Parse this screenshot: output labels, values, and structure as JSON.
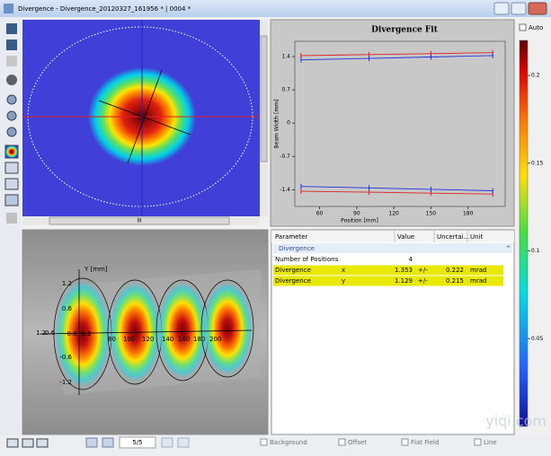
{
  "window": {
    "title": "Divergence - Divergence_20120327_161956 * | 0004 *"
  },
  "image_panel": {
    "scrollbar_thumb": "III"
  },
  "chart_data": {
    "type": "line",
    "title": "Divergence Fit",
    "x_label": "Position [mm]",
    "y_label": "Beam Width [mm]",
    "x": [
      45,
      100,
      150,
      200
    ],
    "series": [
      {
        "color": "#e02020",
        "values": [
          1.42,
          1.44,
          1.46,
          1.48
        ]
      },
      {
        "color": "#2030e0",
        "values": [
          1.33,
          1.36,
          1.39,
          1.42
        ]
      },
      {
        "color": "#e02020",
        "values": [
          -1.43,
          -1.45,
          -1.47,
          -1.49
        ]
      },
      {
        "color": "#2030e0",
        "values": [
          -1.33,
          -1.36,
          -1.39,
          -1.42
        ]
      }
    ],
    "xlim": [
      40,
      210
    ],
    "xticks": [
      60,
      90,
      120,
      150,
      180
    ],
    "ylim": [
      -1.75,
      1.72
    ],
    "yticks": [
      1.4,
      0.7,
      0,
      -0.7,
      -1.4
    ]
  },
  "colorbar": {
    "auto_label": "Auto",
    "lim": [
      0,
      0.22
    ],
    "ticks": [
      0.2,
      0.15,
      0.1,
      0.05
    ]
  },
  "view_3d": {
    "y_axis_label": "Y [mm]",
    "y_ticks": [
      "1.2",
      "0.6",
      "-0.6",
      "-1.2"
    ],
    "side_ticks": [
      "1.2",
      "0.6",
      "-0.6",
      "-1.2"
    ],
    "x_ticks": [
      "80",
      "100",
      "120",
      "140",
      "160",
      "180",
      "200"
    ]
  },
  "table": {
    "columns": [
      "Parameter",
      "Value",
      "Uncertai...",
      "Unit"
    ],
    "group": "Divergence",
    "rows": [
      {
        "parameter": "Number of Positions",
        "value": 4
      },
      {
        "parameter": "Divergence",
        "axis": "x",
        "value": 1.353,
        "pm": "+/-",
        "uncertainty": 0.222,
        "unit": "mrad"
      },
      {
        "parameter": "Divergence",
        "axis": "y",
        "value": 1.129,
        "pm": "+/-",
        "uncertainty": 0.215,
        "unit": "mrad"
      }
    ]
  },
  "status_bar": {
    "page": "5/5",
    "checkboxes": [
      "Background",
      "Offset",
      "Flat Field",
      "Line"
    ]
  },
  "watermark": "yiqi.com"
}
